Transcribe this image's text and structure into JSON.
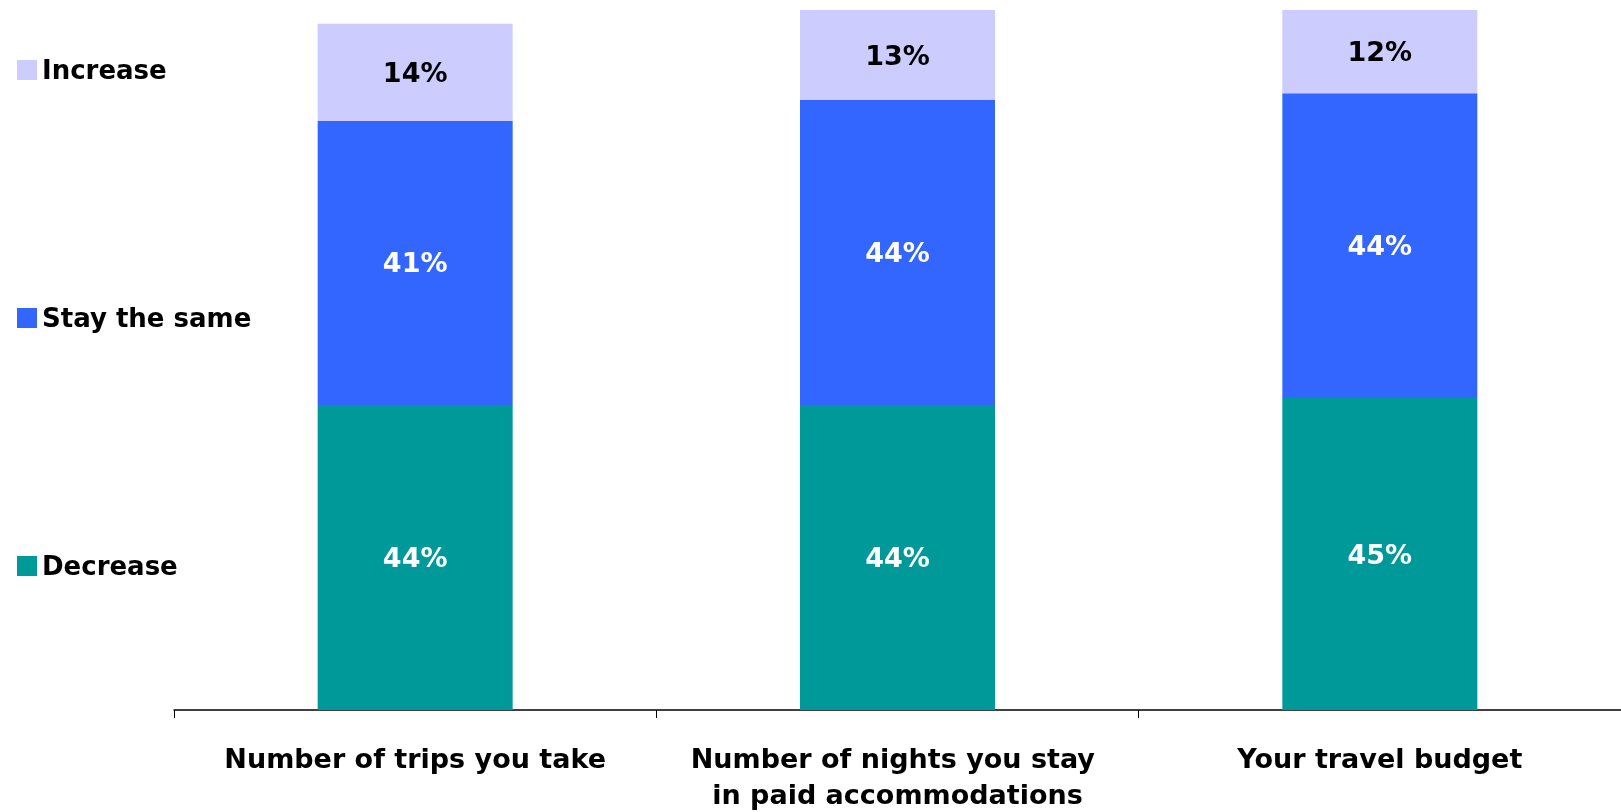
{
  "chart_data": {
    "type": "bar",
    "stacked": true,
    "legend": "left",
    "grid": false,
    "categories": [
      "Number of trips you take",
      "Number of nights you stay in paid accommodations",
      "Your travel budget"
    ],
    "series": [
      {
        "name": "Decrease",
        "color": "#009999",
        "values": [
          44,
          44,
          45
        ],
        "value_labels": [
          "44%",
          "44%",
          "45%"
        ]
      },
      {
        "name": "Stay the same",
        "color": "#3366ff",
        "values": [
          41,
          44,
          44
        ],
        "value_labels": [
          "41%",
          "44%",
          "44%"
        ]
      },
      {
        "name": "Increase",
        "color": "#ccccff",
        "values": [
          14,
          13,
          12
        ],
        "value_labels": [
          "14%",
          "13%",
          "12%"
        ]
      }
    ]
  }
}
